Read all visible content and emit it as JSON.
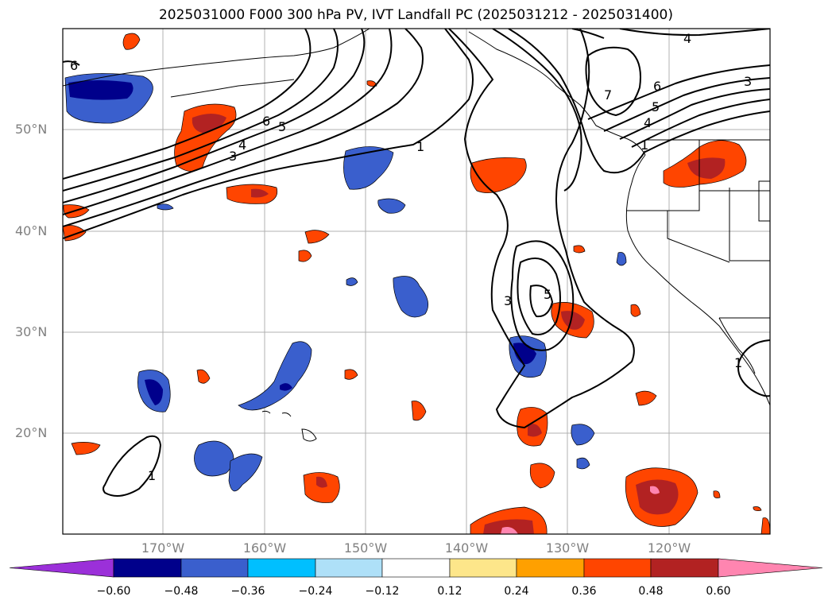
{
  "title": "2025031000 F000 300 hPa PV, IVT Landfall PC (2025031212 - 2025031400)",
  "lat_labels": [
    "50°N",
    "40°N",
    "30°N",
    "20°N"
  ],
  "lon_labels": [
    "170°W",
    "160°W",
    "150°W",
    "140°W",
    "130°W",
    "120°W"
  ],
  "colorbar": {
    "ticks": [
      "−0.60",
      "−0.48",
      "−0.36",
      "−0.24",
      "−0.12",
      "0.12",
      "0.24",
      "0.36",
      "0.48",
      "0.60"
    ],
    "colors": [
      "#9b30d9",
      "#00008b",
      "#3a5fcd",
      "#00bfff",
      "#aee0f8",
      "#ffffff",
      "#fde68a",
      "#ffa000",
      "#ff4500",
      "#b22222",
      "#ff85b0"
    ]
  },
  "contour_labels": [
    "1",
    "3",
    "4",
    "5",
    "6",
    "1",
    "3",
    "5",
    "7",
    "6",
    "5",
    "4",
    "3",
    "4",
    "1",
    "1",
    "6"
  ]
}
